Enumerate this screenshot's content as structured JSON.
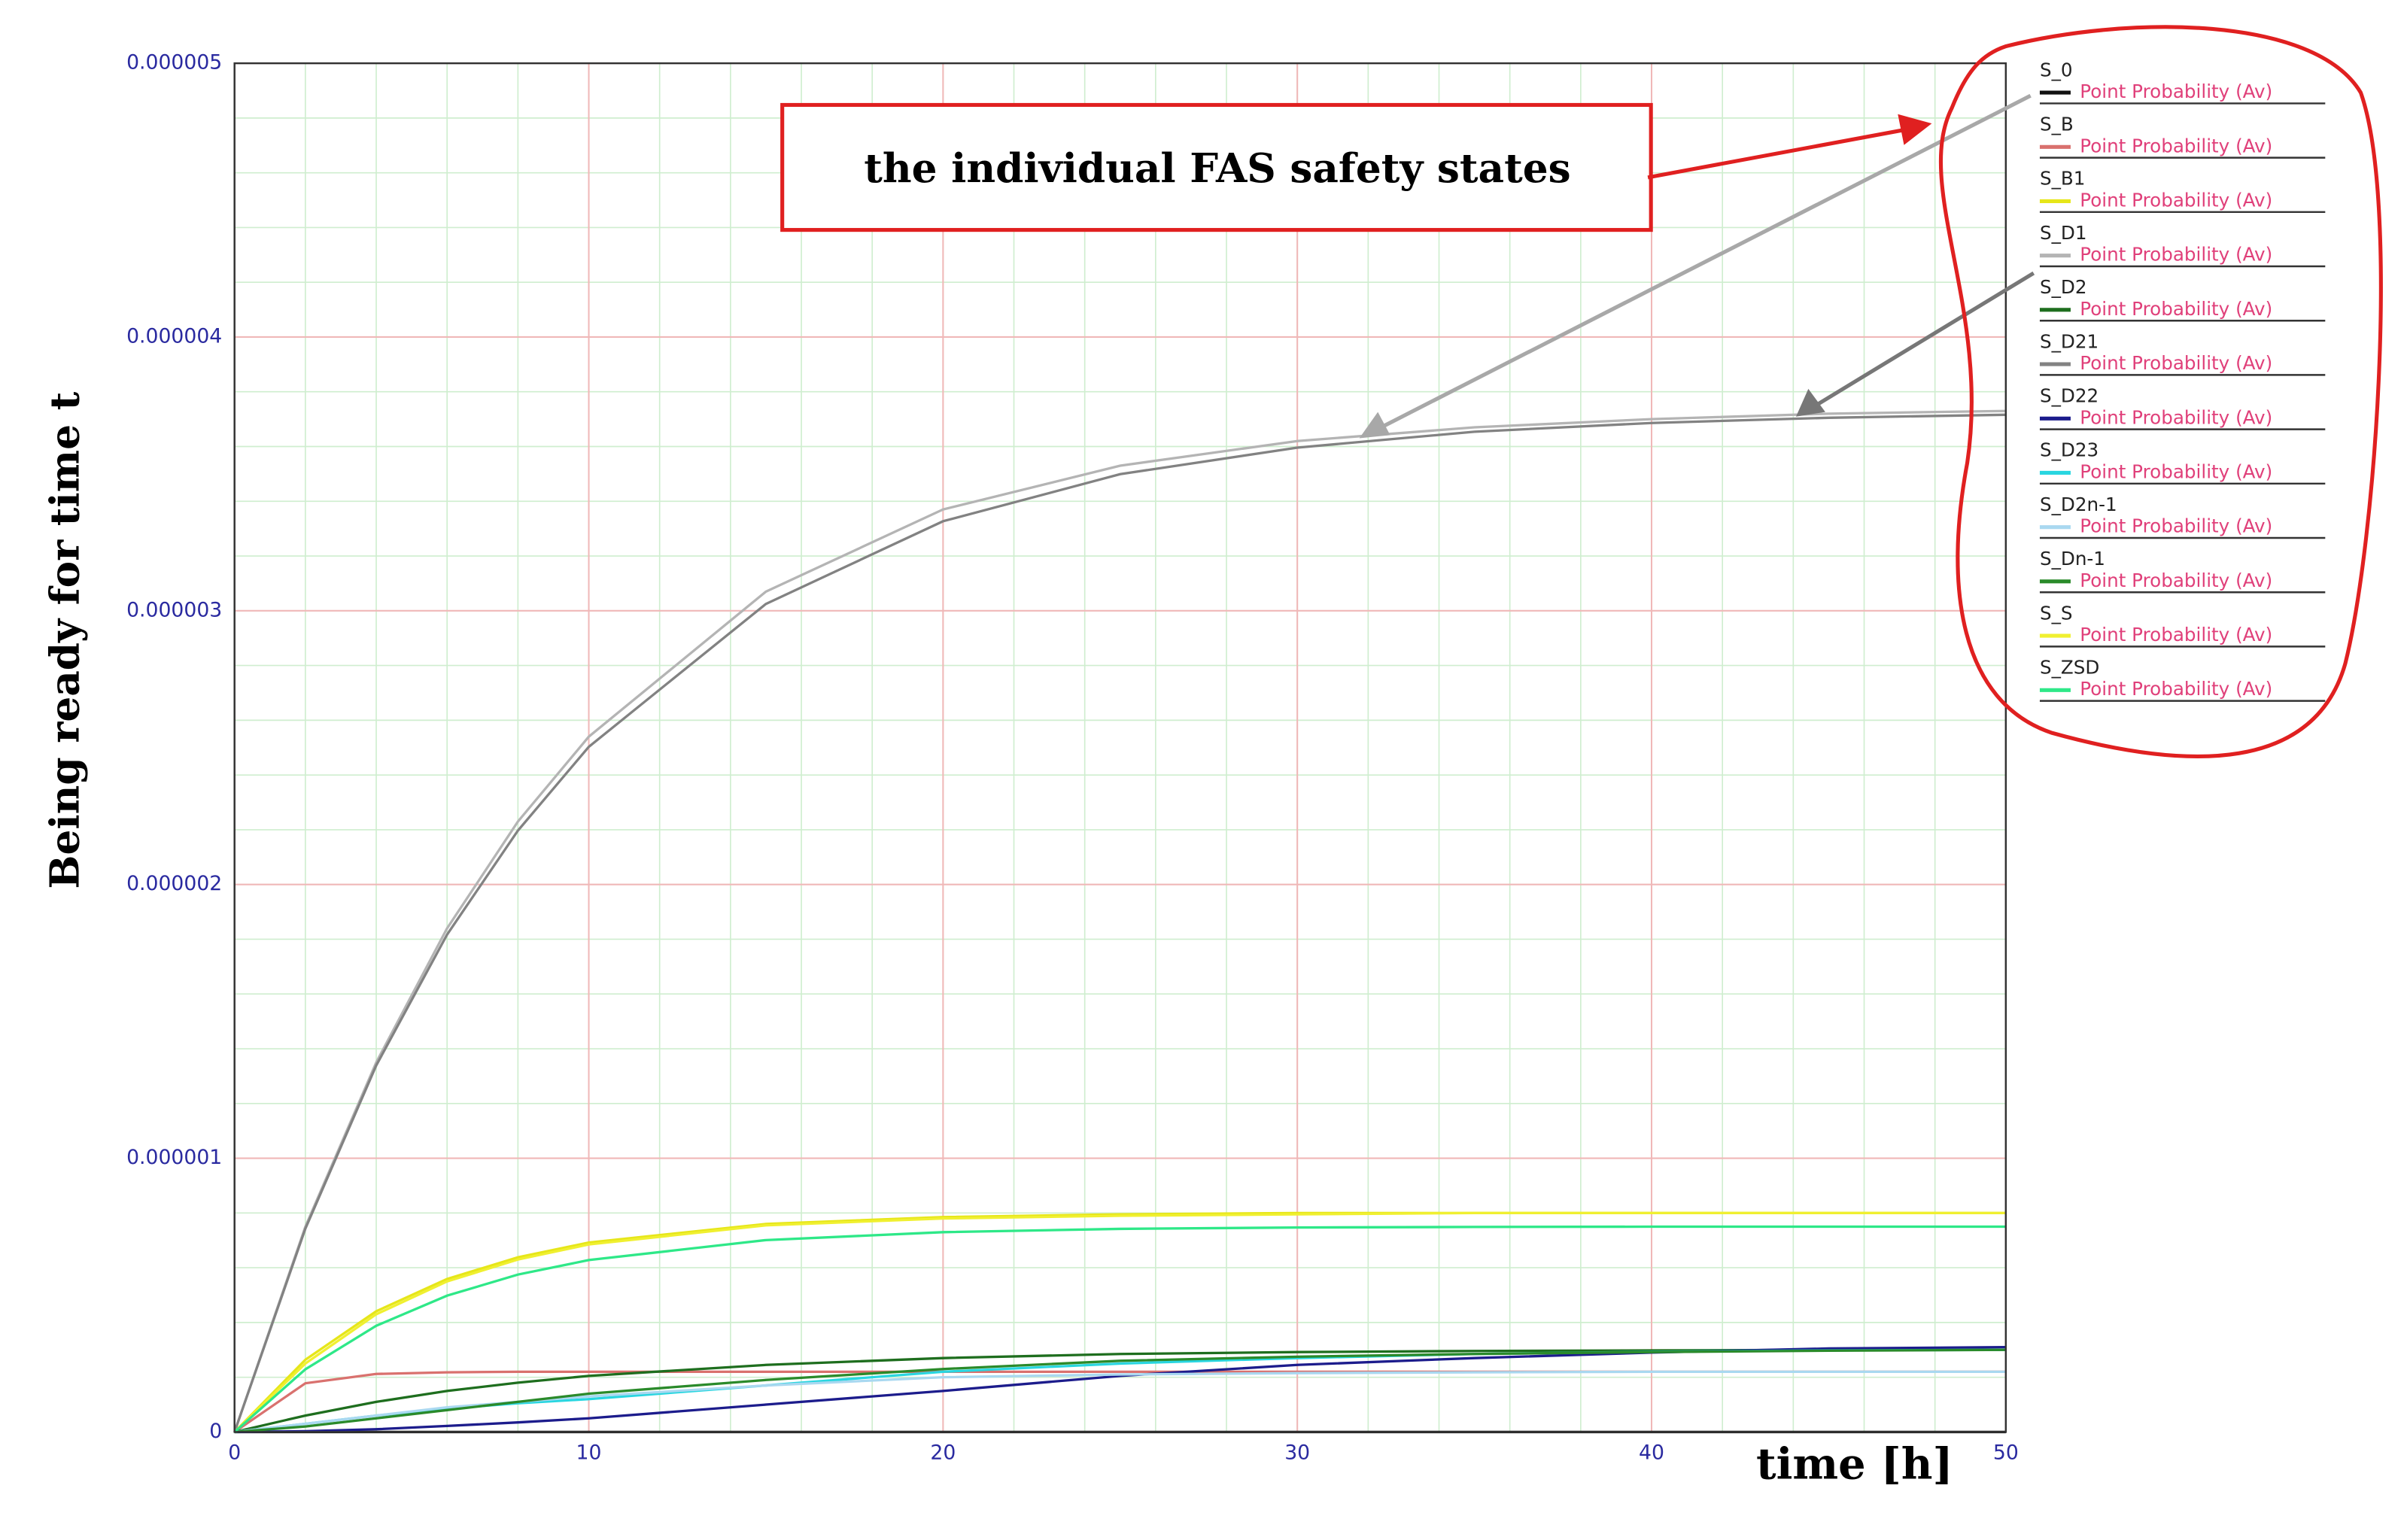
{
  "chart_data": {
    "type": "line",
    "annotation": "the individual FAS safety states",
    "ylabel": "Being ready for time t",
    "xlabel": "time [h]",
    "x": [
      0,
      2,
      4,
      6,
      8,
      10,
      15,
      20,
      25,
      30,
      35,
      40,
      45,
      50
    ],
    "xlim": [
      0,
      50
    ],
    "xticks": [
      0,
      10,
      20,
      30,
      40,
      50
    ],
    "ylim": [
      0,
      5e-06
    ],
    "yticks": [
      0,
      1e-06,
      2e-06,
      3e-06,
      4e-06,
      5e-06
    ],
    "grid": true,
    "minor_grid": true,
    "legend": "right",
    "series": [
      {
        "name": "S_0",
        "measure": "Point Probability (Av)",
        "color": "#111111",
        "values": [
          0,
          0,
          0,
          0,
          0,
          0,
          0,
          0,
          0,
          0,
          0,
          0,
          0,
          0
        ]
      },
      {
        "name": "S_B",
        "measure": "Point Probability (Av)",
        "color": "#d9716e",
        "values": [
          0,
          1.78e-07,
          2.12e-07,
          2.18e-07,
          2.2e-07,
          2.2e-07,
          2.2e-07,
          2.2e-07,
          2.2e-07,
          2.2e-07,
          2.2e-07,
          2.2e-07,
          2.2e-07,
          2.2e-07
        ]
      },
      {
        "name": "S_B1",
        "measure": "Point Probability (Av)",
        "color": "#e6e619",
        "values": [
          0,
          2.64e-07,
          4.41e-07,
          5.59e-07,
          6.38e-07,
          6.92e-07,
          7.6e-07,
          7.85e-07,
          7.95e-07,
          8e-07,
          8e-07,
          8e-07,
          8e-07,
          8e-07
        ]
      },
      {
        "name": "S_D1",
        "measure": "Point Probability (Av)",
        "color": "#b4b4b4",
        "values": [
          0,
          7.5e-07,
          1.35e-06,
          1.84e-06,
          2.23e-06,
          2.54e-06,
          3.07e-06,
          3.37e-06,
          3.53e-06,
          3.62e-06,
          3.67e-06,
          3.7e-06,
          3.72e-06,
          3.73e-06
        ]
      },
      {
        "name": "S_D2",
        "measure": "Point Probability (Av)",
        "color": "#1e6e1e",
        "values": [
          0,
          6e-08,
          1.1e-07,
          1.5e-07,
          1.8e-07,
          2.05e-07,
          2.45e-07,
          2.7e-07,
          2.85e-07,
          2.92e-07,
          2.96e-07,
          2.98e-07,
          3e-07,
          3e-07
        ]
      },
      {
        "name": "S_D21",
        "measure": "Point Probability (Av)",
        "color": "#828282",
        "values": [
          0,
          7.43e-07,
          1.339e-06,
          1.817e-06,
          2.197e-06,
          2.503e-06,
          3.025e-06,
          3.327e-06,
          3.499e-06,
          3.596e-06,
          3.654e-06,
          3.686e-06,
          3.705e-06,
          3.716e-06
        ]
      },
      {
        "name": "S_D22",
        "measure": "Point Probability (Av)",
        "color": "#1c1c8c",
        "values": [
          0,
          3e-09,
          1e-08,
          2.2e-08,
          3.5e-08,
          5e-08,
          1e-07,
          1.5e-07,
          2.05e-07,
          2.45e-07,
          2.7e-07,
          2.9e-07,
          3.05e-07,
          3.1e-07
        ]
      },
      {
        "name": "S_D23",
        "measure": "Point Probability (Av)",
        "color": "#29d6e0",
        "values": [
          0,
          3e-08,
          6e-08,
          8.5e-08,
          1.05e-07,
          1.2e-07,
          1.7e-07,
          2.2e-07,
          2.5e-07,
          2.7e-07,
          2.85e-07,
          2.93e-07,
          2.98e-07,
          3e-07
        ]
      },
      {
        "name": "S_D2n-1",
        "measure": "Point Probability (Av)",
        "color": "#a9d8f0",
        "values": [
          0,
          3e-08,
          6e-08,
          9e-08,
          1.1e-07,
          1.3e-07,
          1.7e-07,
          2e-07,
          2.1e-07,
          2.15e-07,
          2.18e-07,
          2.2e-07,
          2.2e-07,
          2.2e-07
        ]
      },
      {
        "name": "S_Dn-1",
        "measure": "Point Probability (Av)",
        "color": "#2a8a2a",
        "values": [
          0,
          2e-08,
          5e-08,
          8e-08,
          1.1e-07,
          1.4e-07,
          1.9e-07,
          2.3e-07,
          2.6e-07,
          2.75e-07,
          2.85e-07,
          2.92e-07,
          2.97e-07,
          3e-07
        ]
      },
      {
        "name": "S_S",
        "measure": "Point Probability (Av)",
        "color": "#f0f030",
        "values": [
          0,
          2.5e-07,
          4.3e-07,
          5.5e-07,
          6.3e-07,
          6.85e-07,
          7.55e-07,
          7.8e-07,
          7.9e-07,
          7.95e-07,
          8e-07,
          8e-07,
          8e-07,
          8e-07
        ]
      },
      {
        "name": "S_ZSD",
        "measure": "Point Probability (Av)",
        "color": "#2ee888",
        "values": [
          0,
          2.29e-07,
          3.88e-07,
          4.98e-07,
          5.75e-07,
          6.28e-07,
          7.01e-07,
          7.3e-07,
          7.42e-07,
          7.47e-07,
          7.49e-07,
          7.5e-07,
          7.5e-07,
          7.5e-07
        ]
      }
    ]
  }
}
